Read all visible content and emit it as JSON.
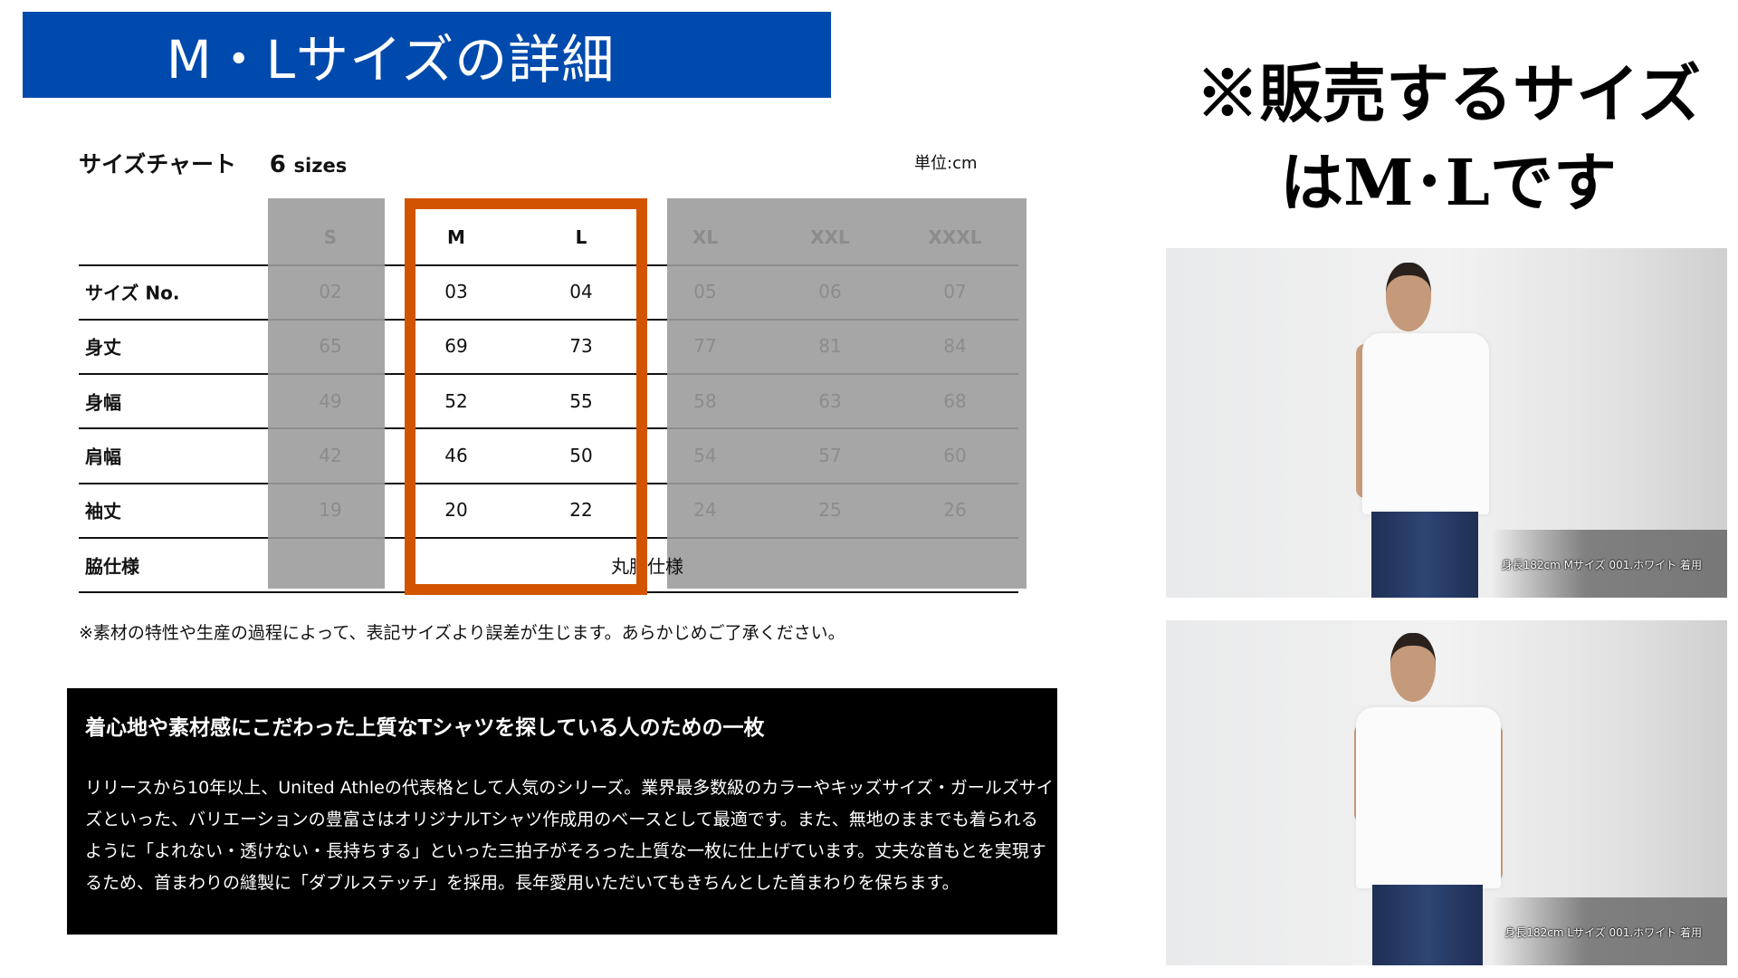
{
  "banner": {
    "title": "M・Lサイズの詳細",
    "color": "#004aad"
  },
  "side_heading": {
    "line1": "※販売するサイズ",
    "line2": "はM･Lです"
  },
  "photos": [
    {
      "caption": "身長182cm Mサイズ 001.ホワイト 着用"
    },
    {
      "caption": "身長182cm Lサイズ 001.ホワイト 着用"
    }
  ],
  "size_chart": {
    "title": "サイズチャート",
    "count": "6",
    "count_unit": "sizes",
    "unit": "単位:cm",
    "highlight_color": "#d35400",
    "columns": [
      "S",
      "M",
      "L",
      "XL",
      "XXL",
      "XXXL"
    ],
    "available": [
      "M",
      "L"
    ],
    "rows": [
      {
        "label": "サイズ No.",
        "values": [
          "02",
          "03",
          "04",
          "05",
          "06",
          "07"
        ]
      },
      {
        "label": "身丈",
        "values": [
          "65",
          "69",
          "73",
          "77",
          "81",
          "84"
        ]
      },
      {
        "label": "身幅",
        "values": [
          "49",
          "52",
          "55",
          "58",
          "63",
          "68"
        ]
      },
      {
        "label": "肩幅",
        "values": [
          "42",
          "46",
          "50",
          "54",
          "57",
          "60"
        ]
      },
      {
        "label": "袖丈",
        "values": [
          "19",
          "20",
          "22",
          "24",
          "25",
          "26"
        ]
      }
    ],
    "side_spec": {
      "label": "脇仕様",
      "value": "丸胴仕様"
    }
  },
  "note": "※素材の特性や生産の過程によって、表記サイズより誤差が生じます。あらかじめご了承ください。",
  "description": {
    "heading": "着心地や素材感にこだわった上質なTシャツを探している人のための一枚",
    "body": "リリースから10年以上、United Athleの代表格として人気のシリーズ。業界最多数級のカラーやキッズサイズ・ガールズサイズといった、バリエーションの豊富さはオリジナルTシャツ作成用のベースとして最適です。また、無地のままでも着られるように「よれない・透けない・長持ちする」といった三拍子がそろった上質な一枚に仕上げています。丈夫な首もとを実現するため、首まわりの縫製に「ダブルステッチ」を採用。長年愛用いただいてもきちんとした首まわりを保ちます。"
  }
}
